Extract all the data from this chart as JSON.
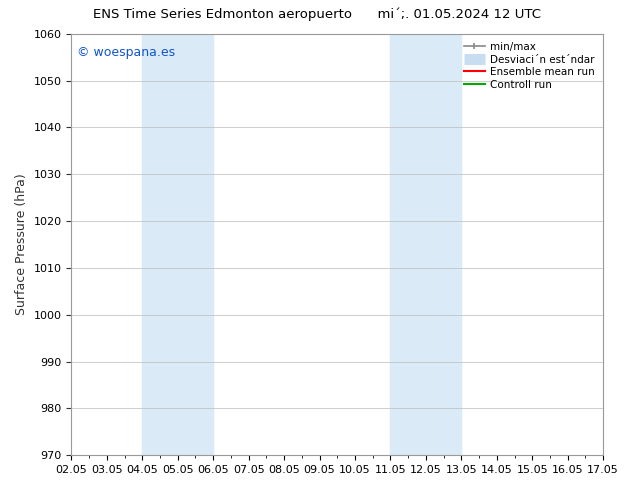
{
  "title_left": "ENS Time Series Edmonton aeropuerto",
  "title_right": "mi´;. 01.05.2024 12 UTC",
  "ylabel": "Surface Pressure (hPa)",
  "xlim": [
    0,
    15
  ],
  "ylim": [
    970,
    1060
  ],
  "yticks": [
    970,
    980,
    990,
    1000,
    1010,
    1020,
    1030,
    1040,
    1050,
    1060
  ],
  "xtick_labels": [
    "02.05",
    "03.05",
    "04.05",
    "05.05",
    "06.05",
    "07.05",
    "08.05",
    "09.05",
    "10.05",
    "11.05",
    "12.05",
    "13.05",
    "14.05",
    "15.05",
    "16.05",
    "17.05"
  ],
  "xtick_positions": [
    0,
    1,
    2,
    3,
    4,
    5,
    6,
    7,
    8,
    9,
    10,
    11,
    12,
    13,
    14,
    15
  ],
  "shaded_bands": [
    {
      "xmin": 2.0,
      "xmax": 3.0
    },
    {
      "xmin": 3.0,
      "xmax": 4.0
    },
    {
      "xmin": 9.0,
      "xmax": 10.0
    },
    {
      "xmin": 10.0,
      "xmax": 11.0
    }
  ],
  "shaded_color": "#daeaf6",
  "copyright_text": "© woespana.es",
  "copyright_color": "#1155cc",
  "bg_color": "#ffffff",
  "grid_color": "#bbbbbb",
  "legend_labels": [
    "min/max",
    "Desviaci´n est´ndar",
    "Ensemble mean run",
    "Controll run"
  ],
  "legend_colors": [
    "#888888",
    "#c8ddf0",
    "#ff0000",
    "#00aa00"
  ],
  "spine_color": "#999999",
  "tick_color": "#333333"
}
